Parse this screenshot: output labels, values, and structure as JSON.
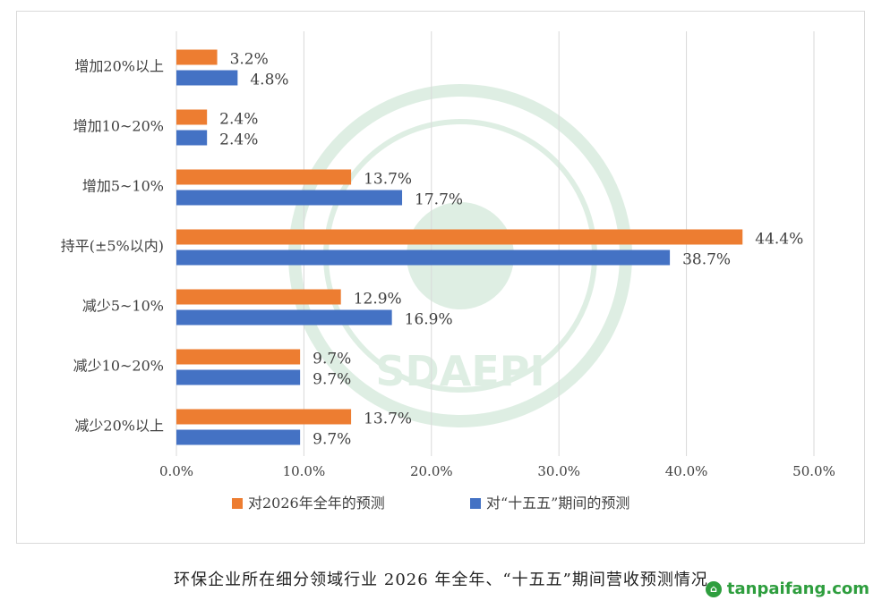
{
  "chart_data": {
    "type": "bar",
    "orientation": "horizontal",
    "categories": [
      "增加20%以上",
      "增加10~20%",
      "增加5~10%",
      "持平(±5%以内)",
      "减少5~10%",
      "减少10~20%",
      "减少20%以上"
    ],
    "series": [
      {
        "name": "对2026年全年的预测",
        "color": "#ed7d31",
        "values": [
          3.2,
          2.4,
          13.7,
          44.4,
          12.9,
          9.7,
          13.7
        ],
        "labels": [
          "3.2%",
          "2.4%",
          "13.7%",
          "44.4%",
          "12.9%",
          "9.7%",
          "13.7%"
        ]
      },
      {
        "name": "对“十五五”期间的预测",
        "color": "#4472c4",
        "values": [
          4.8,
          2.4,
          17.7,
          38.7,
          16.9,
          9.7,
          9.7
        ],
        "labels": [
          "4.8%",
          "2.4%",
          "17.7%",
          "38.7%",
          "16.9%",
          "9.7%",
          "9.7%"
        ]
      }
    ],
    "xlim": [
      0,
      50
    ],
    "x_ticks": [
      "0.0%",
      "10.0%",
      "20.0%",
      "30.0%",
      "40.0%",
      "50.0%"
    ],
    "grid": true,
    "legend_position": "bottom"
  },
  "caption": "环保企业所在细分领域行业 2026 年全年、“十五五”期间营收预测情况",
  "watermark": {
    "site": "tanpaifang.com",
    "seal_text": "SDAEPI"
  },
  "colors": {
    "orange": "#ed7d31",
    "blue": "#4472c4",
    "grid": "#d9d9d9",
    "seal": "#3a9a5a",
    "brand_green": "#2e9e3e"
  }
}
